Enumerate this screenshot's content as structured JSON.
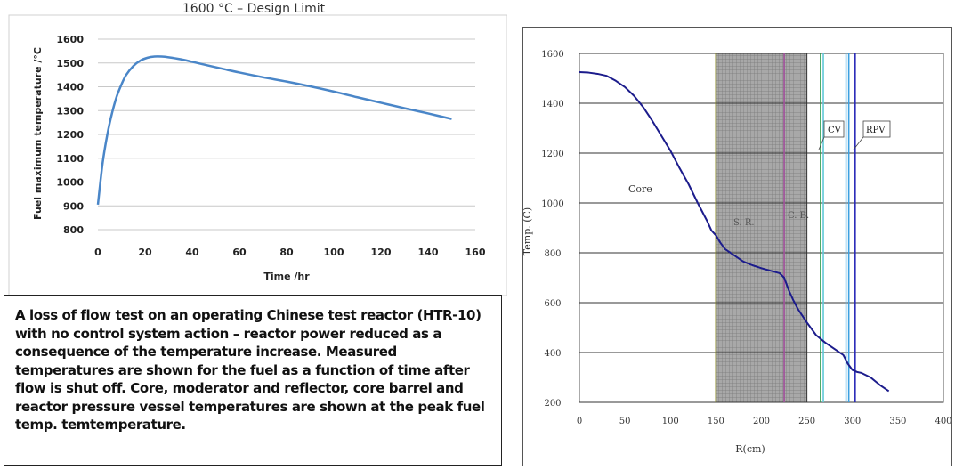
{
  "chart_data": [
    {
      "type": "line",
      "title": "1600 °C – Design Limit",
      "xlabel": "Time /hr",
      "ylabel": "Fuel maximum temperature /°C",
      "xlim": [
        0,
        160
      ],
      "ylim": [
        800,
        1600
      ],
      "xticks": [
        "0",
        "20",
        "40",
        "60",
        "80",
        "100",
        "120",
        "140",
        "160"
      ],
      "yticks": [
        "800",
        "900",
        "1000",
        "1100",
        "1200",
        "1300",
        "1400",
        "1500",
        "1600"
      ],
      "grid": true,
      "color": "#4a86c8",
      "series": [
        {
          "x": [
            0,
            2,
            4,
            6,
            8,
            10,
            12,
            15,
            18,
            21,
            24,
            27,
            30,
            35,
            40,
            50,
            60,
            70,
            80,
            90,
            100,
            110,
            120,
            130,
            140,
            150
          ],
          "y": [
            905,
            1080,
            1200,
            1290,
            1360,
            1410,
            1450,
            1487,
            1510,
            1522,
            1527,
            1527,
            1524,
            1516,
            1505,
            1482,
            1460,
            1440,
            1422,
            1402,
            1380,
            1356,
            1333,
            1310,
            1288,
            1265
          ]
        }
      ]
    },
    {
      "type": "line",
      "title": "",
      "xlabel": "R(cm)",
      "ylabel": "Temp. (C)",
      "xlim": [
        0,
        400
      ],
      "ylim": [
        200,
        1600
      ],
      "xticks": [
        "0",
        "50",
        "100",
        "150",
        "200",
        "250",
        "300",
        "350",
        "400"
      ],
      "yticks": [
        "200",
        "400",
        "600",
        "800",
        "1000",
        "1200",
        "1400",
        "1600"
      ],
      "grid": true,
      "color": "#1c1c8c",
      "series": [
        {
          "x": [
            0,
            10,
            20,
            30,
            40,
            50,
            60,
            70,
            80,
            90,
            100,
            110,
            120,
            130,
            140,
            145,
            150,
            155,
            160,
            170,
            180,
            190,
            200,
            210,
            220,
            225,
            230,
            235,
            240,
            250,
            260,
            270,
            280,
            290,
            295,
            300,
            305,
            310,
            320,
            330,
            340
          ],
          "y": [
            1525,
            1523,
            1518,
            1510,
            1490,
            1465,
            1430,
            1385,
            1330,
            1270,
            1210,
            1140,
            1075,
            1000,
            930,
            890,
            870,
            840,
            815,
            790,
            765,
            750,
            738,
            728,
            718,
            700,
            650,
            610,
            575,
            520,
            470,
            440,
            415,
            390,
            355,
            330,
            322,
            318,
            300,
            270,
            245
          ]
        }
      ],
      "regions": [
        {
          "label": "S. R.",
          "x": [
            150,
            250
          ]
        },
        {
          "label": "C. B.",
          "x": 225
        }
      ],
      "vlines": [
        {
          "x": 150,
          "color": "#8a8a1a"
        },
        {
          "x": 225,
          "color": "#a0509a"
        },
        {
          "x": 265,
          "color": "#2e9a4a"
        },
        {
          "x": 268,
          "color": "#60c8d8"
        },
        {
          "x": 293,
          "color": "#60b8e8"
        },
        {
          "x": 296,
          "color": "#3ca0e0"
        },
        {
          "x": 303,
          "color": "#2a2ab8"
        }
      ],
      "annotations": [
        "Core",
        "S. R.",
        "C. B.",
        "CV",
        "RPV"
      ]
    }
  ],
  "caption": "A loss of flow test on an operating Chinese test reactor (HTR-10) with no control system action – reactor power reduced as a consequence of the temperature increase. Measured temperatures are shown for the fuel as a function of time after flow is shut off. Core, moderator and reflector, core barrel and reactor pressure vessel temperatures are shown at the peak fuel temp. temtemperature."
}
